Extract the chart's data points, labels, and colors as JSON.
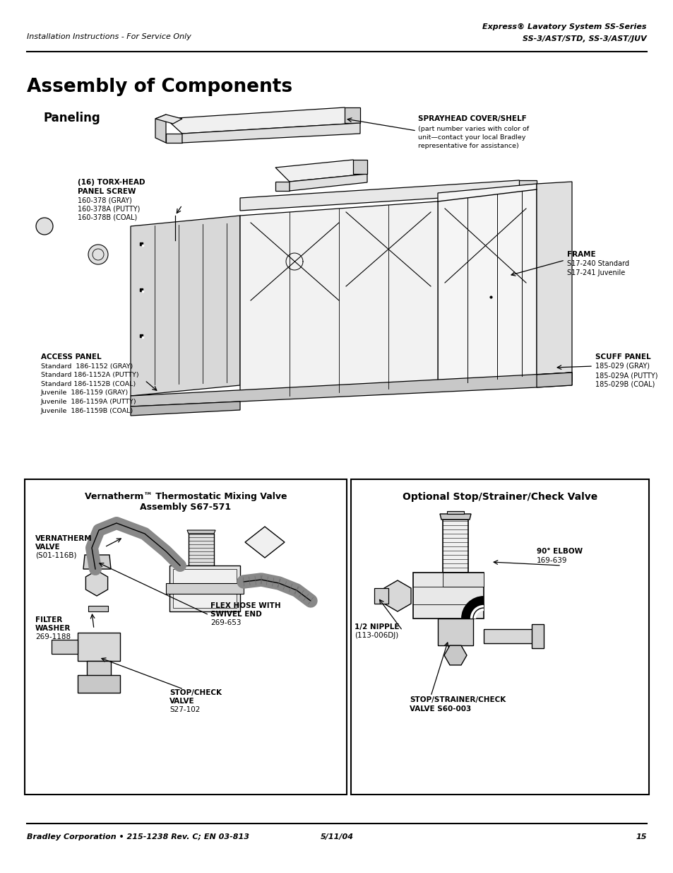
{
  "background_color": "#ffffff",
  "page_width": 9.54,
  "page_height": 12.35,
  "dpi": 100,
  "header": {
    "left_text": "Installation Instructions - For Service Only",
    "right_line1": "Express® Lavatory System SS-Series",
    "right_line2": "SS-3/AST/STD, SS-3/AST/JUV"
  },
  "footer": {
    "left_text": "Bradley Corporation • 215-1238 Rev. C; EN 03-813",
    "center_text": "5/11/04",
    "right_text": "15"
  },
  "title": "Assembly of Components",
  "section1_title": "Paneling",
  "box1_title1": "Vernatherm™ Thermostatic Mixing Valve",
  "box1_title2": "Assembly S67-571",
  "box2_title": "Optional Stop/Strainer/Check Valve"
}
